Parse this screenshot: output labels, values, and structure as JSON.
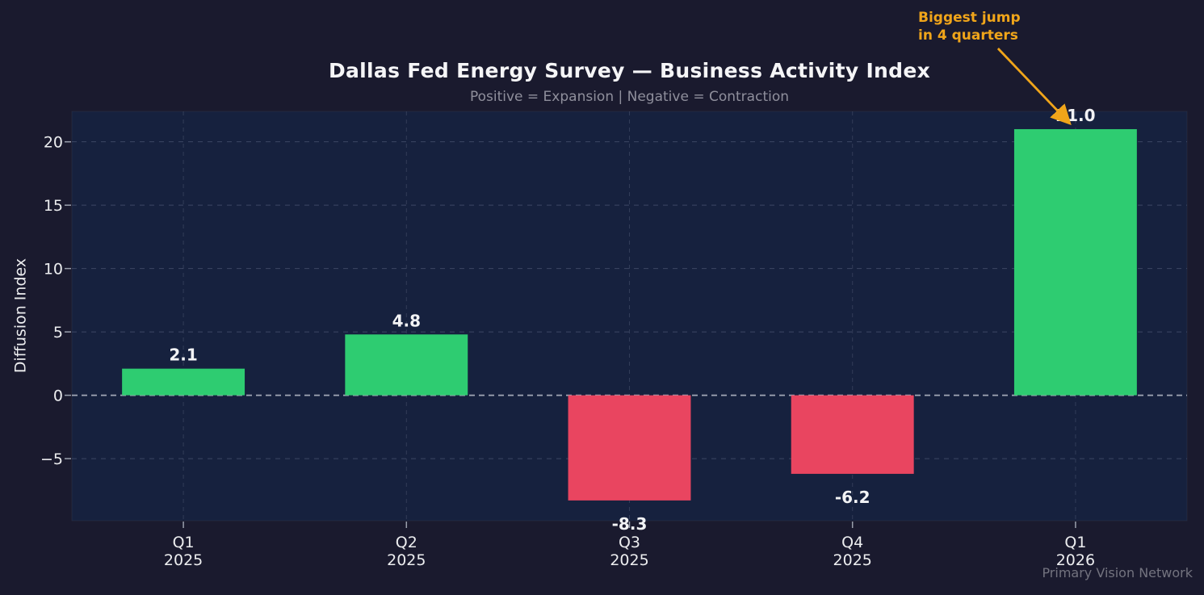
{
  "header": {
    "title": "Dallas Fed Energy Survey — Business Activity Index",
    "subtitle": "Positive = Expansion | Negative = Contraction"
  },
  "annotation": {
    "line1": "Biggest jump",
    "line2": "in 4 quarters",
    "points_to": "Q1 2026",
    "color": "#f0a51a"
  },
  "footer": {
    "credit": "Primary Vision Network"
  },
  "chart_data": {
    "type": "bar",
    "title": "Dallas Fed Energy Survey — Business Activity Index",
    "subtitle": "Positive = Expansion | Negative = Contraction",
    "ylabel": "Diffusion Index",
    "xlabel": "",
    "categories": [
      "Q1 2025",
      "Q2 2025",
      "Q3 2025",
      "Q4 2025",
      "Q1 2026"
    ],
    "tick_lines": [
      [
        "Q1",
        "2025"
      ],
      [
        "Q2",
        "2025"
      ],
      [
        "Q3",
        "2025"
      ],
      [
        "Q4",
        "2025"
      ],
      [
        "Q1",
        "2026"
      ]
    ],
    "values": [
      2.1,
      4.8,
      -8.3,
      -6.2,
      21.0
    ],
    "value_labels": [
      "2.1",
      "4.8",
      "-8.3",
      "-6.2",
      "21.0"
    ],
    "yticks": [
      -5,
      0,
      5,
      10,
      15,
      20
    ],
    "ylim": [
      -9.9,
      22.4
    ],
    "grid": true,
    "zero_line": true,
    "legend_position": "none",
    "bar_width_fraction": 0.55
  },
  "colors": {
    "figure_bg": "#1a1a2e",
    "axes_bg": "#16213e",
    "positive": "#2ecc71",
    "negative": "#e94560",
    "accent_orange": "#f0a51a",
    "text": "#f2f3f5",
    "tick_text": "#ecedef",
    "muted_text": "#8f8f9c",
    "footer_text": "#73737f",
    "grid_line": "rgba(173,180,208,0.26)",
    "zero_line": "#aab0bc",
    "tick_mark": "#9aa0ad"
  }
}
